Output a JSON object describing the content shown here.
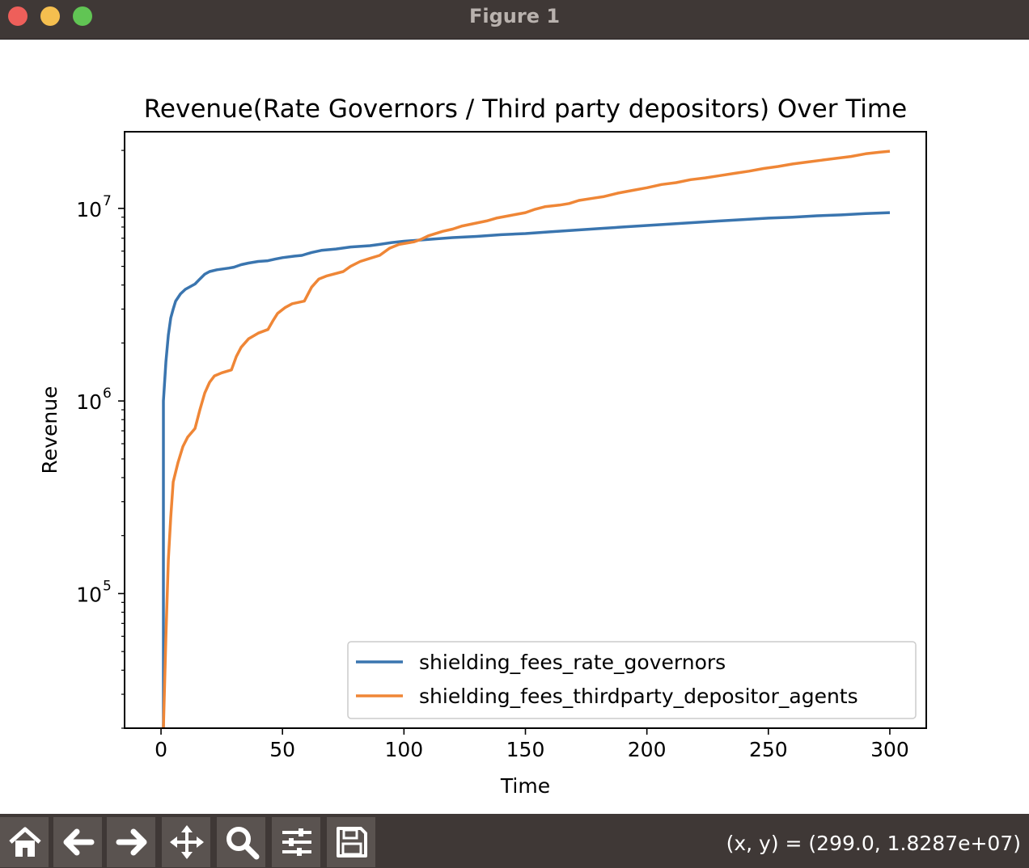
{
  "window": {
    "title": "Figure 1"
  },
  "toolbar": {
    "buttons": [
      "home-icon",
      "back-arrow-icon",
      "forward-arrow-icon",
      "pan-move-icon",
      "zoom-magnifier-icon",
      "configure-subplots-icon",
      "save-disk-icon"
    ],
    "coords_text": "(x, y) = (299.0, 1.8287e+07)"
  },
  "chart_data": {
    "type": "line",
    "title": "Revenue(Rate Governors / Third party depositors) Over Time",
    "xlabel": "Time",
    "ylabel": "Revenue",
    "xlim": [
      -15,
      315
    ],
    "ylim": [
      20000,
      25000000
    ],
    "yscale": "log",
    "grid": false,
    "legend_position": "lower-right",
    "x_ticks": [
      0,
      50,
      100,
      150,
      200,
      250,
      300
    ],
    "y_ticks": [
      {
        "value": 100000,
        "base": "10",
        "exp": "5"
      },
      {
        "value": 1000000,
        "base": "10",
        "exp": "6"
      },
      {
        "value": 10000000,
        "base": "10",
        "exp": "7"
      }
    ],
    "series": [
      {
        "name": "shielding_fees_rate_governors",
        "color": "#3a75af",
        "points": [
          [
            1,
            20000
          ],
          [
            1,
            1000000
          ],
          [
            2,
            1600000
          ],
          [
            3,
            2200000
          ],
          [
            4,
            2700000
          ],
          [
            5,
            3000000
          ],
          [
            6,
            3300000
          ],
          [
            8,
            3600000
          ],
          [
            10,
            3800000
          ],
          [
            14,
            4050000
          ],
          [
            16,
            4300000
          ],
          [
            18,
            4550000
          ],
          [
            20,
            4700000
          ],
          [
            23,
            4800000
          ],
          [
            28,
            4900000
          ],
          [
            30,
            4950000
          ],
          [
            33,
            5100000
          ],
          [
            36,
            5200000
          ],
          [
            40,
            5300000
          ],
          [
            44,
            5350000
          ],
          [
            47,
            5450000
          ],
          [
            50,
            5550000
          ],
          [
            55,
            5650000
          ],
          [
            58,
            5700000
          ],
          [
            62,
            5900000
          ],
          [
            66,
            6050000
          ],
          [
            72,
            6150000
          ],
          [
            78,
            6300000
          ],
          [
            86,
            6400000
          ],
          [
            90,
            6500000
          ],
          [
            95,
            6650000
          ],
          [
            100,
            6750000
          ],
          [
            110,
            6900000
          ],
          [
            120,
            7050000
          ],
          [
            130,
            7150000
          ],
          [
            140,
            7300000
          ],
          [
            150,
            7400000
          ],
          [
            160,
            7550000
          ],
          [
            170,
            7700000
          ],
          [
            180,
            7850000
          ],
          [
            190,
            8000000
          ],
          [
            200,
            8150000
          ],
          [
            210,
            8300000
          ],
          [
            220,
            8450000
          ],
          [
            230,
            8600000
          ],
          [
            240,
            8750000
          ],
          [
            250,
            8900000
          ],
          [
            260,
            9000000
          ],
          [
            270,
            9150000
          ],
          [
            280,
            9250000
          ],
          [
            290,
            9400000
          ],
          [
            300,
            9500000
          ]
        ]
      },
      {
        "name": "shielding_fees_thirdparty_depositor_agents",
        "color": "#ef8636",
        "points": [
          [
            1,
            20000
          ],
          [
            2,
            60000
          ],
          [
            3,
            150000
          ],
          [
            4,
            250000
          ],
          [
            5,
            380000
          ],
          [
            7,
            480000
          ],
          [
            9,
            580000
          ],
          [
            11,
            650000
          ],
          [
            14,
            720000
          ],
          [
            16,
            900000
          ],
          [
            18,
            1100000
          ],
          [
            20,
            1250000
          ],
          [
            22,
            1350000
          ],
          [
            25,
            1400000
          ],
          [
            29,
            1450000
          ],
          [
            31,
            1700000
          ],
          [
            33,
            1900000
          ],
          [
            36,
            2100000
          ],
          [
            40,
            2250000
          ],
          [
            44,
            2350000
          ],
          [
            46,
            2600000
          ],
          [
            48,
            2850000
          ],
          [
            51,
            3050000
          ],
          [
            54,
            3200000
          ],
          [
            59,
            3300000
          ],
          [
            62,
            3900000
          ],
          [
            65,
            4300000
          ],
          [
            68,
            4450000
          ],
          [
            75,
            4700000
          ],
          [
            78,
            5000000
          ],
          [
            82,
            5300000
          ],
          [
            86,
            5500000
          ],
          [
            90,
            5700000
          ],
          [
            94,
            6200000
          ],
          [
            98,
            6500000
          ],
          [
            104,
            6700000
          ],
          [
            107,
            6900000
          ],
          [
            110,
            7200000
          ],
          [
            116,
            7600000
          ],
          [
            120,
            7800000
          ],
          [
            124,
            8100000
          ],
          [
            128,
            8300000
          ],
          [
            134,
            8600000
          ],
          [
            138,
            8900000
          ],
          [
            144,
            9200000
          ],
          [
            150,
            9500000
          ],
          [
            154,
            9900000
          ],
          [
            158,
            10200000
          ],
          [
            164,
            10400000
          ],
          [
            168,
            10600000
          ],
          [
            172,
            11000000
          ],
          [
            178,
            11300000
          ],
          [
            182,
            11500000
          ],
          [
            188,
            12000000
          ],
          [
            194,
            12400000
          ],
          [
            200,
            12800000
          ],
          [
            206,
            13300000
          ],
          [
            212,
            13600000
          ],
          [
            218,
            14100000
          ],
          [
            224,
            14400000
          ],
          [
            230,
            14800000
          ],
          [
            236,
            15200000
          ],
          [
            242,
            15600000
          ],
          [
            248,
            16100000
          ],
          [
            254,
            16500000
          ],
          [
            260,
            17000000
          ],
          [
            266,
            17400000
          ],
          [
            272,
            17800000
          ],
          [
            278,
            18200000
          ],
          [
            284,
            18600000
          ],
          [
            290,
            19200000
          ],
          [
            296,
            19600000
          ],
          [
            300,
            19800000
          ]
        ]
      }
    ]
  }
}
